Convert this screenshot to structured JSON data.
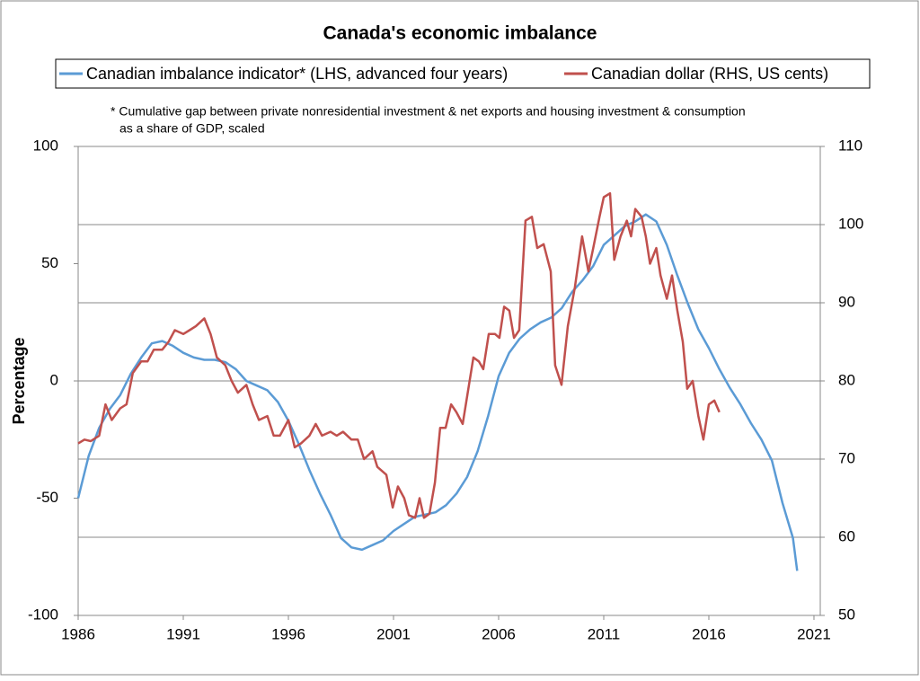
{
  "chart_data": {
    "type": "line",
    "title": "Canada's economic imbalance",
    "footnote": [
      "* Cumulative gap between private nonresidential investment & net exports and  housing investment & consumption",
      "as a share of GDP, scaled"
    ],
    "ylabel": "Percentage",
    "xlim": [
      1986,
      2021.3
    ],
    "xticks": [
      1986,
      1991,
      1996,
      2001,
      2006,
      2011,
      2016,
      2021
    ],
    "ylim": [
      -100,
      100
    ],
    "yticks": [
      -100,
      -50,
      0,
      50,
      100
    ],
    "y2lim": [
      50,
      110
    ],
    "y2ticks": [
      50,
      60,
      70,
      80,
      90,
      100,
      110
    ],
    "grid": true,
    "series": [
      {
        "name": "Canadian imbalance indicator* (LHS, advanced four years)",
        "color": "#5b9bd5",
        "x": [
          1986,
          1986.5,
          1987,
          1987.5,
          1988,
          1988.5,
          1989,
          1989.5,
          1990,
          1990.5,
          1991,
          1991.5,
          1992,
          1992.5,
          1993,
          1993.5,
          1994,
          1994.5,
          1995,
          1995.5,
          1996,
          1996.5,
          1997,
          1997.5,
          1998,
          1998.5,
          1999,
          1999.5,
          2000,
          2000.5,
          2001,
          2001.5,
          2002,
          2002.5,
          2003,
          2003.5,
          2004,
          2004.5,
          2005,
          2005.5,
          2006,
          2006.5,
          2007,
          2007.5,
          2008,
          2008.5,
          2009,
          2009.5,
          2010,
          2010.5,
          2011,
          2011.5,
          2012,
          2012.5,
          2013,
          2013.5,
          2014,
          2014.5,
          2015,
          2015.5,
          2016,
          2016.5,
          2017,
          2017.5,
          2018,
          2018.5,
          2019,
          2019.5,
          2020,
          2020.2
        ],
        "values": [
          -50,
          -32,
          -20,
          -12,
          -6,
          3,
          10,
          16,
          17,
          15,
          12,
          10,
          9,
          9,
          8,
          5,
          0,
          -2,
          -4,
          -9,
          -17,
          -27,
          -38,
          -48,
          -57,
          -67,
          -71,
          -72,
          -70,
          -68,
          -64,
          -61,
          -58,
          -57,
          -56,
          -53,
          -48,
          -41,
          -30,
          -15,
          2,
          12,
          18,
          22,
          25,
          27,
          31,
          38,
          43,
          49,
          58,
          62,
          66,
          68,
          71,
          68,
          58,
          45,
          33,
          22,
          14,
          5,
          -3,
          -10,
          -18,
          -25,
          -34,
          -52,
          -67,
          -81
        ]
      },
      {
        "name": "Canadian dollar (RHS, US cents)",
        "color": "#c0504d",
        "axis": "y2",
        "x": [
          1986,
          1986.3,
          1986.6,
          1987,
          1987.3,
          1987.6,
          1988,
          1988.3,
          1988.6,
          1989,
          1989.3,
          1989.6,
          1990,
          1990.3,
          1990.6,
          1991,
          1991.3,
          1991.6,
          1992,
          1992.3,
          1992.6,
          1993,
          1993.3,
          1993.6,
          1994,
          1994.3,
          1994.6,
          1995,
          1995.3,
          1995.6,
          1996,
          1996.3,
          1996.6,
          1997,
          1997.3,
          1997.6,
          1998,
          1998.3,
          1998.6,
          1999,
          1999.3,
          1999.6,
          2000,
          2000.23,
          2000.66,
          2000.96,
          2001.21,
          2001.51,
          2001.73,
          2002.03,
          2002.24,
          2002.45,
          2002.71,
          2002.97,
          2003.22,
          2003.48,
          2003.74,
          2003.99,
          2004.29,
          2004.5,
          2004.8,
          2005.06,
          2005.27,
          2005.53,
          2005.83,
          2006.04,
          2006.26,
          2006.51,
          2006.73,
          2006.98,
          2007.28,
          2007.58,
          2007.84,
          2008.14,
          2008.48,
          2008.69,
          2008.99,
          2009.29,
          2009.63,
          2009.97,
          2010.27,
          2010.5,
          2010.8,
          2011.0,
          2011.3,
          2011.5,
          2011.8,
          2012.1,
          2012.3,
          2012.5,
          2012.8,
          2013.0,
          2013.2,
          2013.5,
          2013.7,
          2014.0,
          2014.25,
          2014.5,
          2014.76,
          2014.97,
          2015.23,
          2015.5,
          2015.74,
          2016.0,
          2016.26,
          2016.5
        ],
        "values": [
          72,
          72.5,
          72.3,
          73,
          77,
          75,
          76.5,
          77,
          81,
          82.5,
          82.5,
          84,
          84,
          85,
          86.5,
          86,
          86.5,
          87,
          88,
          86,
          83,
          82,
          80,
          78.5,
          79.5,
          77,
          75,
          75.5,
          73,
          73,
          75,
          71.5,
          72,
          73,
          74.5,
          73,
          73.5,
          73,
          73.5,
          72.5,
          72.5,
          70,
          71,
          69,
          68,
          63.8,
          66.5,
          65,
          62.8,
          62.5,
          65,
          62.5,
          63,
          67,
          74,
          74,
          77,
          76,
          74.5,
          78,
          83,
          82.5,
          81.5,
          86,
          86,
          85.5,
          89.5,
          89,
          85.5,
          86.5,
          100.5,
          101,
          97,
          97.5,
          94,
          82,
          79.5,
          87,
          92,
          98.5,
          94,
          97,
          101,
          103.5,
          104,
          95.5,
          98.5,
          100.5,
          98.5,
          102,
          101,
          98.5,
          95,
          97,
          93.5,
          90.5,
          93.5,
          89,
          85,
          79,
          80,
          75.5,
          72.5,
          77,
          77.5,
          76
        ]
      }
    ]
  }
}
